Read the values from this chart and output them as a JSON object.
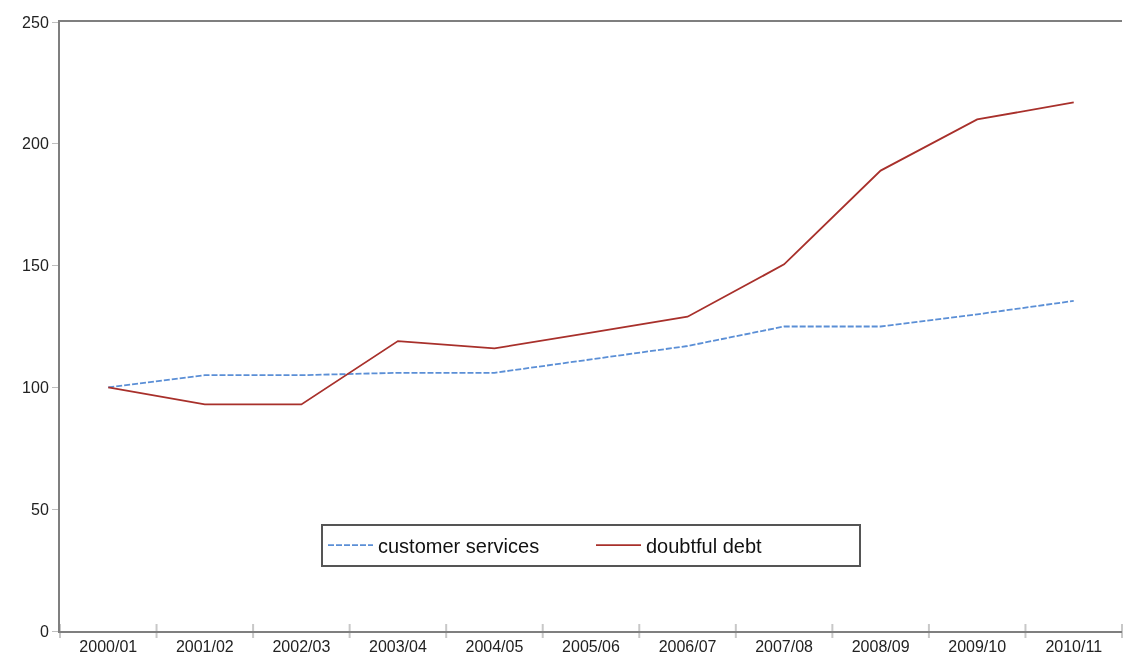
{
  "chart_data": {
    "type": "line",
    "categories": [
      "2000/01",
      "2001/02",
      "2002/03",
      "2003/04",
      "2004/05",
      "2005/06",
      "2006/07",
      "2007/08",
      "2008/09",
      "2009/10",
      "2010/11"
    ],
    "series": [
      {
        "name": "customer services",
        "color": "#5b8fd6",
        "line_style": "dashed",
        "values": [
          100,
          105,
          105,
          106,
          106,
          111.5,
          117,
          125,
          125,
          130,
          135.5
        ]
      },
      {
        "name": "doubtful debt",
        "color": "#a8302b",
        "line_style": "solid",
        "values": [
          100,
          93,
          93,
          119,
          116,
          122.5,
          129,
          150.5,
          189,
          210,
          217
        ]
      }
    ],
    "ylim": [
      0,
      250
    ],
    "yticks": [
      0,
      50,
      100,
      150,
      200,
      250
    ],
    "grid": false,
    "legend": "bottom",
    "marker": "none"
  }
}
